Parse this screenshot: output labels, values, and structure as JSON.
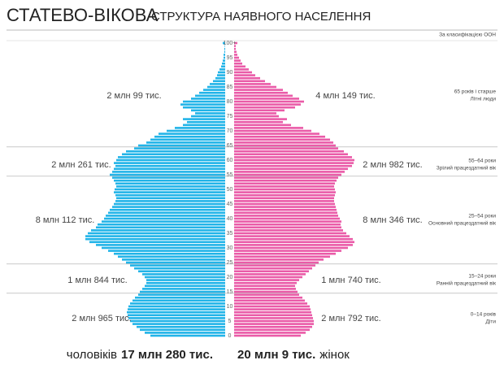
{
  "chart_data": {
    "type": "pyramid",
    "title": "СТАТЕВО-ВІКОВА",
    "subtitle": "СТРУКТУРА НАЯВНОГО НАСЕЛЕННЯ",
    "note": "За класифікацією ООН",
    "categories": [
      "0",
      null,
      null,
      null,
      null,
      "5",
      null,
      null,
      null,
      null,
      "10",
      null,
      null,
      null,
      null,
      "15",
      null,
      null,
      null,
      null,
      "20",
      null,
      null,
      null,
      null,
      "25",
      null,
      null,
      null,
      null,
      "30",
      null,
      null,
      null,
      null,
      "35",
      null,
      null,
      null,
      null,
      "40",
      null,
      null,
      null,
      null,
      "45",
      null,
      null,
      null,
      null,
      "50",
      null,
      null,
      null,
      null,
      "55",
      null,
      null,
      null,
      null,
      "60",
      null,
      null,
      null,
      null,
      "65",
      null,
      null,
      null,
      null,
      "70",
      null,
      null,
      null,
      null,
      "75",
      null,
      null,
      null,
      null,
      "80",
      null,
      null,
      null,
      null,
      "85",
      null,
      null,
      null,
      null,
      "90",
      null,
      null,
      null,
      null,
      "95",
      null,
      null,
      null,
      null,
      "100+"
    ],
    "series": [
      {
        "name": "чоловіків",
        "total": "17 млн 280 тис.",
        "color": "#22b4e8",
        "values": [
          184,
          198,
          210,
          218,
          228,
          234,
          238,
          240,
          242,
          240,
          238,
          234,
          228,
          222,
          214,
          210,
          204,
          198,
          194,
          194,
          198,
          204,
          214,
          224,
          234,
          244,
          254,
          264,
          274,
          288,
          304,
          318,
          334,
          344,
          344,
          338,
          330,
          318,
          314,
          304,
          298,
          294,
          288,
          284,
          278,
          274,
          270,
          268,
          270,
          274,
          272,
          268,
          270,
          274,
          278,
          284,
          278,
          274,
          270,
          274,
          268,
          264,
          254,
          244,
          224,
          214,
          194,
          184,
          174,
          164,
          144,
          124,
          104,
          94,
          104,
          84,
          74,
          84,
          104,
          110,
          104,
          84,
          74,
          64,
          54,
          44,
          38,
          30,
          24,
          20,
          18,
          14,
          10,
          8,
          6,
          4,
          4,
          2,
          2,
          1,
          6
        ]
      },
      {
        "name": "жінок",
        "total": "20 млн 9 тис.",
        "color": "#ea5ba8",
        "values": [
          164,
          176,
          186,
          192,
          196,
          196,
          194,
          192,
          190,
          188,
          186,
          180,
          174,
          168,
          160,
          156,
          152,
          150,
          154,
          160,
          168,
          176,
          184,
          192,
          200,
          208,
          220,
          236,
          250,
          264,
          280,
          292,
          296,
          292,
          284,
          276,
          268,
          264,
          262,
          264,
          260,
          256,
          254,
          252,
          250,
          248,
          246,
          246,
          248,
          250,
          248,
          246,
          248,
          252,
          256,
          264,
          272,
          280,
          290,
          294,
          296,
          290,
          280,
          270,
          256,
          250,
          244,
          236,
          224,
          210,
          190,
          170,
          140,
          120,
          130,
          110,
          104,
          124,
          150,
          164,
          172,
          160,
          144,
          132,
          120,
          104,
          90,
          76,
          64,
          52,
          44,
          36,
          28,
          20,
          16,
          12,
          8,
          6,
          4,
          4,
          8
        ]
      }
    ],
    "groups": [
      {
        "name": "0–14 років",
        "description": "Діти",
        "ages": [
          0,
          14
        ],
        "men": "2 млн 965 тис.",
        "women": "2 млн 792 тис."
      },
      {
        "name": "15–24 роки",
        "description": "Ранній працездатний вік",
        "ages": [
          15,
          24
        ],
        "men": "1 млн 844 тис.",
        "women": "1 млн 740 тис."
      },
      {
        "name": "25–54 роки",
        "description": "Основний працездатний вік",
        "ages": [
          25,
          54
        ],
        "men": "8 млн 112 тис.",
        "women": "8 млн 346 тис."
      },
      {
        "name": "55–64 роки",
        "description": "Зрілий працездатний вік",
        "ages": [
          55,
          64
        ],
        "men": "2 млн 261 тис.",
        "women": "2 млн 982 тис."
      },
      {
        "name": "65 років і старше",
        "description": "Літні люди",
        "ages": [
          65,
          100
        ],
        "men": "2 млн 99 тис.",
        "women": "4 млн 149 тис."
      }
    ]
  }
}
